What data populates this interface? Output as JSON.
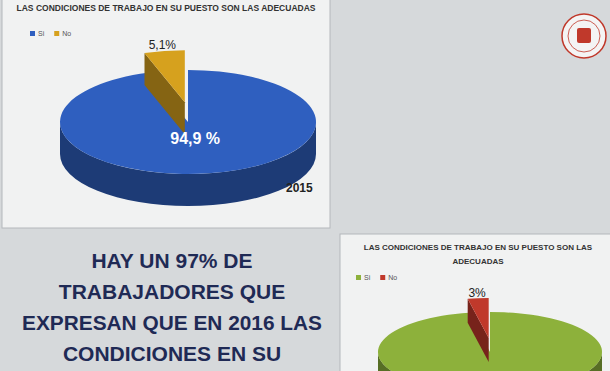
{
  "chart_data": [
    {
      "type": "pie",
      "title": "LAS CONDICIONES DE TRABAJO EN SU PUESTO SON LAS ADECUADAS",
      "categories": [
        "Si",
        "No"
      ],
      "values": [
        94.9,
        5.1
      ],
      "value_labels": [
        "94,9 %",
        "5,1%"
      ],
      "colors": [
        "#2f5fbf",
        "#d6a11e"
      ],
      "legend": "top-left",
      "data_labels": true,
      "annotation": "2015"
    },
    {
      "type": "pie",
      "title": "LAS CONDICIONES DE TRABAJO EN SU PUESTO SON LAS ADECUADAS",
      "categories": [
        "Si",
        "No"
      ],
      "values": [
        97,
        3
      ],
      "value_labels": [
        null,
        "3%"
      ],
      "colors": [
        "#8db13b",
        "#c0392b"
      ],
      "legend": "top-left",
      "data_labels": true
    }
  ],
  "headline": [
    "HAY UN 97% DE",
    "TRABAJADORES QUE",
    "EXPRESAN QUE EN 2016 LAS",
    "CONDICIONES EN SU"
  ]
}
